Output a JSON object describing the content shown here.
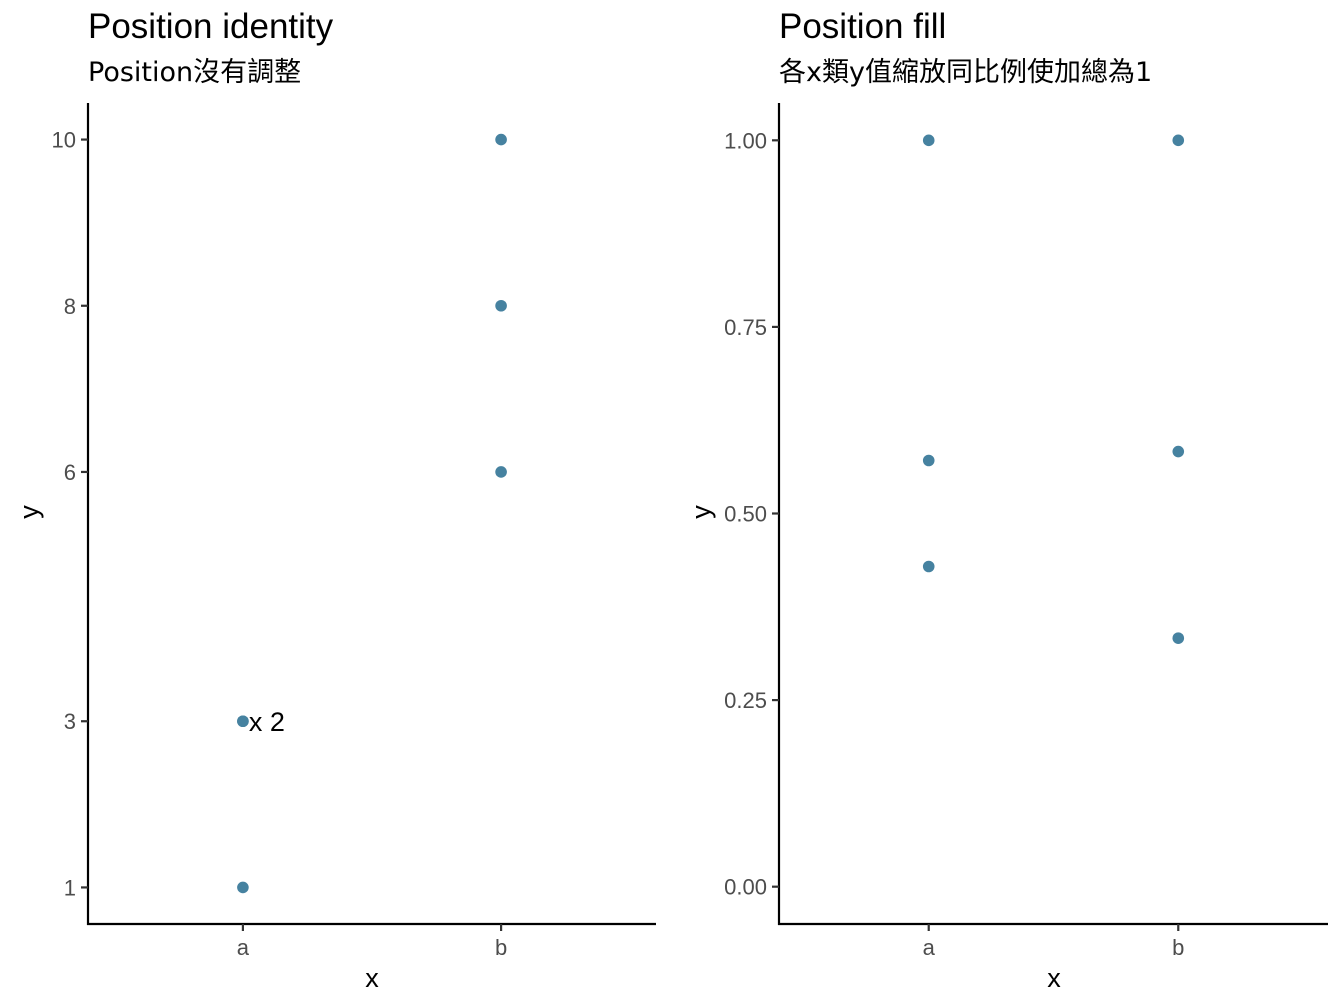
{
  "chart_data": [
    {
      "type": "scatter",
      "title": "Position identity",
      "subtitle": "Position沒有調整",
      "xlabel": "x",
      "ylabel": "y",
      "categories": [
        "a",
        "b"
      ],
      "ylim": [
        0.56,
        10.44
      ],
      "y_ticks": [
        1,
        3,
        6,
        8,
        10
      ],
      "y_tick_labels": [
        "1",
        "3",
        "6",
        "8",
        "10"
      ],
      "points": [
        {
          "x": "a",
          "y": 1
        },
        {
          "x": "a",
          "y": 3
        },
        {
          "x": "a",
          "y": 3
        },
        {
          "x": "b",
          "y": 6
        },
        {
          "x": "b",
          "y": 8
        },
        {
          "x": "b",
          "y": 10
        }
      ],
      "annotations": [
        {
          "x": "a",
          "y": 3,
          "text": "x 2"
        }
      ],
      "grid": false,
      "legend": "none",
      "point_color": "#4682a0"
    },
    {
      "type": "scatter",
      "title": "Position fill",
      "subtitle": "各x類y值縮放同比例使加總為1",
      "xlabel": "x",
      "ylabel": "y",
      "categories": [
        "a",
        "b"
      ],
      "ylim": [
        -0.05,
        1.05
      ],
      "y_ticks": [
        0,
        0.25,
        0.5,
        0.75,
        1
      ],
      "y_tick_labels": [
        "0.00",
        "0.25",
        "0.50",
        "0.75",
        "1.00"
      ],
      "points": [
        {
          "x": "a",
          "y": 1.0
        },
        {
          "x": "a",
          "y": 0.571
        },
        {
          "x": "a",
          "y": 0.429
        },
        {
          "x": "b",
          "y": 1.0
        },
        {
          "x": "b",
          "y": 0.583
        },
        {
          "x": "b",
          "y": 0.333
        }
      ],
      "annotations": [],
      "grid": false,
      "legend": "none",
      "point_color": "#4682a0"
    }
  ]
}
